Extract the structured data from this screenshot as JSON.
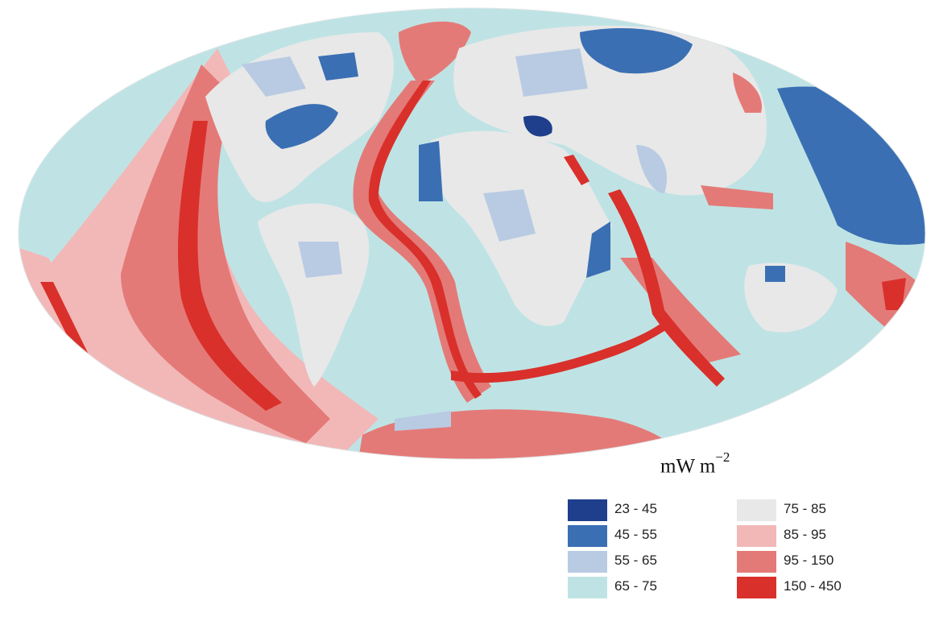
{
  "map": {
    "projection": "Mollweide",
    "classes": [
      {
        "label": "23 - 45",
        "color": "#1f3f8c"
      },
      {
        "label": "45 - 55",
        "color": "#3b6fb3"
      },
      {
        "label": "55 - 65",
        "color": "#b9cbe3"
      },
      {
        "label": "65 - 75",
        "color": "#bfe3e4"
      },
      {
        "label": "75 - 85",
        "color": "#e8e8e8"
      },
      {
        "label": "85 - 95",
        "color": "#f2b8b8"
      },
      {
        "label": "95 - 150",
        "color": "#e47a77"
      },
      {
        "label": "150 - 450",
        "color": "#d9302b"
      }
    ],
    "unit_base": "mW m",
    "unit_exponent": "−2"
  }
}
